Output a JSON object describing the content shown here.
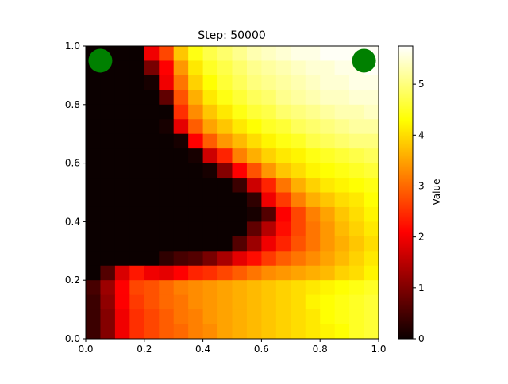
{
  "chart_data": {
    "type": "heatmap",
    "title": "Step: 50000",
    "xlabel": "",
    "ylabel": "",
    "xlim": [
      0,
      1
    ],
    "ylim": [
      0,
      1
    ],
    "x_ticks": [
      "0.0",
      "0.2",
      "0.4",
      "0.6",
      "0.8",
      "1.0"
    ],
    "y_ticks": [
      "0.0",
      "0.2",
      "0.4",
      "0.6",
      "0.8",
      "1.0"
    ],
    "grid": false,
    "colormap": "hot",
    "colorbar": {
      "label": "Value",
      "vmin": 0,
      "vmax": 5.75,
      "ticks": [
        "0",
        "1",
        "2",
        "3",
        "4",
        "5"
      ]
    },
    "markers": [
      {
        "x": 0.05,
        "y": 0.95,
        "color": "#008000"
      },
      {
        "x": 0.95,
        "y": 0.95,
        "color": "#008000"
      }
    ],
    "grid_rows": 20,
    "grid_cols": 20,
    "values_top_to_bottom": [
      [
        0,
        0,
        0,
        0,
        1.9,
        2.7,
        3.8,
        4.4,
        4.7,
        4.9,
        5.1,
        5.3,
        5.4,
        5.5,
        5.6,
        5.6,
        5.7,
        5.7,
        5.7,
        5.7
      ],
      [
        0,
        0,
        0,
        0,
        0.9,
        2.1,
        3.4,
        4.1,
        4.5,
        4.7,
        4.9,
        5.1,
        5.2,
        5.3,
        5.4,
        5.5,
        5.5,
        5.6,
        5.6,
        5.7
      ],
      [
        0,
        0,
        0,
        0,
        0.1,
        1.9,
        3.1,
        3.9,
        4.3,
        4.6,
        4.8,
        5.0,
        5.1,
        5.2,
        5.3,
        5.4,
        5.5,
        5.5,
        5.6,
        5.6
      ],
      [
        0,
        0,
        0,
        0,
        0,
        0.7,
        2.8,
        3.6,
        4.1,
        4.4,
        4.6,
        4.8,
        4.9,
        5.1,
        5.2,
        5.3,
        5.4,
        5.4,
        5.5,
        5.5
      ],
      [
        0,
        0,
        0,
        0,
        0,
        0,
        2.5,
        3.3,
        3.8,
        4.1,
        4.4,
        4.6,
        4.7,
        4.9,
        5.0,
        5.1,
        5.2,
        5.3,
        5.3,
        5.4
      ],
      [
        0,
        0,
        0,
        0,
        0,
        0.1,
        1.8,
        2.9,
        3.5,
        3.8,
        4.1,
        4.3,
        4.5,
        4.6,
        4.8,
        4.9,
        5.0,
        5.1,
        5.2,
        5.2
      ],
      [
        0,
        0,
        0,
        0,
        0,
        0,
        0.1,
        2.1,
        2.9,
        3.4,
        3.7,
        4.0,
        4.2,
        4.4,
        4.5,
        4.7,
        4.8,
        4.9,
        5.0,
        5.0
      ],
      [
        0,
        0,
        0,
        0,
        0,
        0,
        0,
        0.1,
        1.6,
        2.4,
        3.2,
        3.6,
        3.9,
        4.1,
        4.2,
        4.4,
        4.5,
        4.6,
        4.7,
        4.8
      ],
      [
        0,
        0,
        0,
        0,
        0,
        0,
        0,
        0,
        0.1,
        1.0,
        2.1,
        2.8,
        3.4,
        3.8,
        4.0,
        4.2,
        4.3,
        4.4,
        4.5,
        4.6
      ],
      [
        0,
        0,
        0,
        0,
        0,
        0,
        0,
        0,
        0,
        0,
        0.4,
        1.6,
        2.4,
        3.1,
        3.6,
        3.9,
        4.1,
        4.2,
        4.3,
        4.4
      ],
      [
        0,
        0,
        0,
        0,
        0,
        0,
        0,
        0,
        0,
        0,
        0,
        0.3,
        1.9,
        2.6,
        3.2,
        3.6,
        3.8,
        4.0,
        4.1,
        4.3
      ],
      [
        0,
        0,
        0,
        0,
        0,
        0,
        0,
        0,
        0,
        0,
        0,
        0.1,
        0.6,
        2.0,
        2.7,
        3.2,
        3.5,
        3.8,
        4.0,
        4.2
      ],
      [
        0,
        0,
        0,
        0,
        0,
        0,
        0,
        0,
        0,
        0,
        0,
        0.7,
        1.4,
        2.2,
        2.7,
        3.1,
        3.4,
        3.7,
        3.9,
        4.1
      ],
      [
        0,
        0,
        0,
        0,
        0,
        0,
        0,
        0,
        0,
        0,
        0.6,
        1.2,
        1.9,
        2.4,
        2.8,
        3.1,
        3.4,
        3.6,
        3.8,
        4.0
      ],
      [
        0,
        0,
        0,
        0,
        0,
        0.3,
        0.5,
        0.6,
        0.9,
        1.3,
        1.8,
        2.2,
        2.6,
        2.9,
        3.1,
        3.3,
        3.5,
        3.7,
        3.9,
        4.1
      ],
      [
        0,
        0.6,
        1.7,
        2.3,
        1.9,
        1.8,
        2.1,
        2.4,
        2.5,
        2.7,
        2.9,
        3.1,
        3.3,
        3.4,
        3.5,
        3.6,
        3.7,
        3.9,
        4.0,
        4.2
      ],
      [
        0.5,
        1.2,
        2.1,
        2.7,
        2.8,
        3.0,
        3.2,
        3.3,
        3.4,
        3.5,
        3.6,
        3.7,
        3.8,
        3.9,
        4.0,
        4.1,
        4.2,
        4.3,
        4.4,
        4.5
      ],
      [
        0.4,
        1.1,
        2.0,
        2.6,
        2.8,
        3.0,
        3.1,
        3.3,
        3.4,
        3.5,
        3.6,
        3.7,
        3.8,
        3.9,
        4.0,
        4.2,
        4.3,
        4.4,
        4.5,
        4.6
      ],
      [
        0.4,
        1.0,
        1.9,
        2.5,
        2.7,
        2.9,
        3.1,
        3.2,
        3.4,
        3.5,
        3.6,
        3.7,
        3.8,
        3.9,
        4.0,
        4.1,
        4.3,
        4.4,
        4.5,
        4.6
      ],
      [
        0.4,
        1.0,
        1.9,
        2.5,
        2.7,
        2.9,
        3.0,
        3.2,
        3.3,
        3.5,
        3.6,
        3.7,
        3.8,
        3.9,
        4.0,
        4.1,
        4.2,
        4.3,
        4.5,
        4.6
      ]
    ]
  }
}
